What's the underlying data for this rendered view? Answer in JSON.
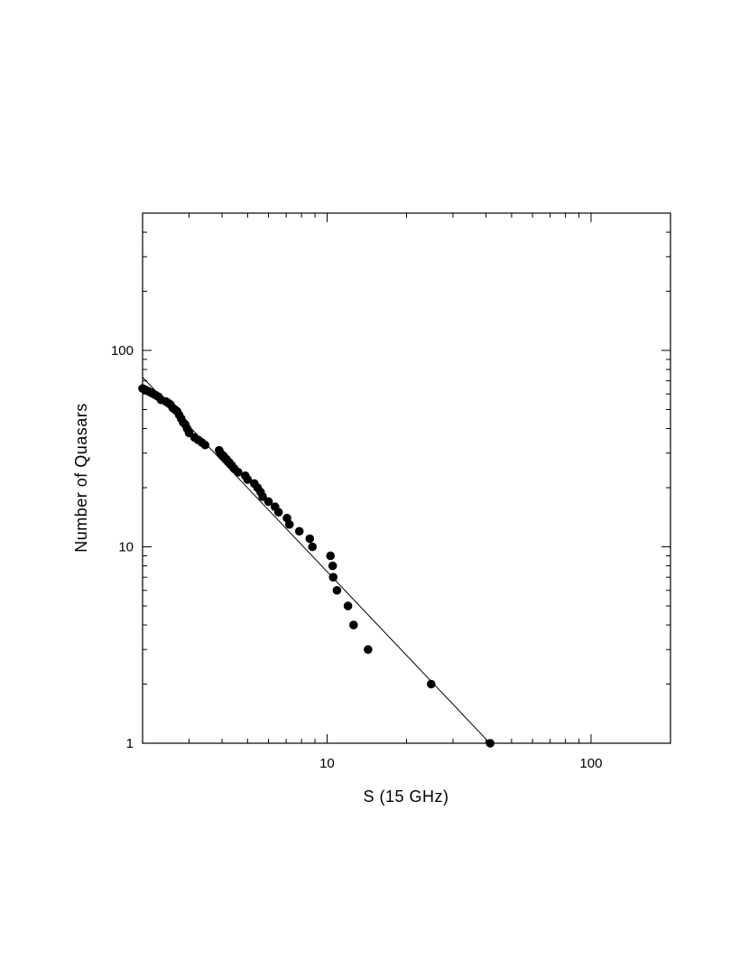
{
  "chart_data": {
    "type": "scatter",
    "title": "",
    "xlabel": "S (15 GHz)",
    "ylabel": "Number of Quasars",
    "x_scale": "log",
    "y_scale": "log",
    "xlim": [
      2,
      200
    ],
    "ylim": [
      1,
      500
    ],
    "x_tick_labels": [
      {
        "value": 10,
        "label": "10"
      },
      {
        "value": 100,
        "label": "100"
      }
    ],
    "y_tick_labels": [
      {
        "value": 1,
        "label": "1"
      },
      {
        "value": 10,
        "label": "10"
      },
      {
        "value": 100,
        "label": "100"
      }
    ],
    "grid": false,
    "legend": "none",
    "point_color": "#000000",
    "series": [
      {
        "points": [
          [
            2.0,
            64
          ],
          [
            2.05,
            63
          ],
          [
            2.1,
            62
          ],
          [
            2.15,
            61
          ],
          [
            2.2,
            60
          ],
          [
            2.25,
            59
          ],
          [
            2.3,
            58
          ],
          [
            2.35,
            56
          ],
          [
            2.45,
            55
          ],
          [
            2.5,
            54
          ],
          [
            2.55,
            53
          ],
          [
            2.6,
            51
          ],
          [
            2.65,
            50
          ],
          [
            2.7,
            49
          ],
          [
            2.75,
            47
          ],
          [
            2.8,
            45
          ],
          [
            2.85,
            43
          ],
          [
            2.9,
            42
          ],
          [
            2.95,
            40
          ],
          [
            3.0,
            38
          ],
          [
            3.15,
            36
          ],
          [
            3.25,
            35
          ],
          [
            3.35,
            34
          ],
          [
            3.45,
            33
          ],
          [
            3.9,
            31
          ],
          [
            3.95,
            30
          ],
          [
            4.05,
            29
          ],
          [
            4.15,
            28
          ],
          [
            4.25,
            27
          ],
          [
            4.35,
            26
          ],
          [
            4.45,
            25
          ],
          [
            4.6,
            24
          ],
          [
            4.9,
            23
          ],
          [
            5.0,
            22
          ],
          [
            5.3,
            21
          ],
          [
            5.45,
            20
          ],
          [
            5.6,
            19
          ],
          [
            5.7,
            18
          ],
          [
            6.0,
            17
          ],
          [
            6.35,
            16
          ],
          [
            6.55,
            15
          ],
          [
            7.05,
            14
          ],
          [
            7.2,
            13
          ],
          [
            7.85,
            12
          ],
          [
            8.6,
            11
          ],
          [
            8.8,
            10
          ],
          [
            10.3,
            9
          ],
          [
            10.5,
            8
          ],
          [
            10.55,
            7
          ],
          [
            10.9,
            6
          ],
          [
            12.0,
            5
          ],
          [
            12.6,
            4
          ],
          [
            14.3,
            3
          ],
          [
            24.8,
            2
          ],
          [
            41.5,
            1
          ]
        ]
      }
    ],
    "fit_line": {
      "style": "solid",
      "color": "#000000",
      "points": [
        [
          2.0,
          73
        ],
        [
          42.0,
          0.98
        ]
      ]
    }
  }
}
